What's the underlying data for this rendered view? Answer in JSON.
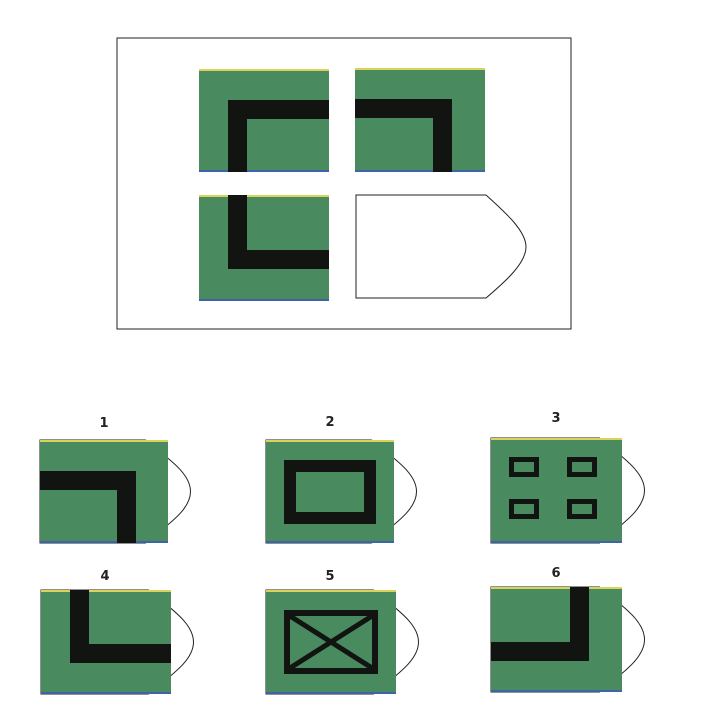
{
  "colors": {
    "tile": "#4a8a5f",
    "bar": "#111411",
    "frame": "#222222",
    "top_edge": "#d9d35a",
    "bottom_edge": "#3f63a8"
  },
  "puzzle": {
    "grid": [
      {
        "name": "matrix-cell-top-left",
        "figure": "corner-top-left"
      },
      {
        "name": "matrix-cell-top-right",
        "figure": "corner-top-right"
      },
      {
        "name": "matrix-cell-bottom-left",
        "figure": "corner-bottom-left"
      },
      {
        "name": "matrix-cell-missing",
        "figure": "blank"
      }
    ]
  },
  "options": [
    {
      "label": "1",
      "figure": "corner-top-right"
    },
    {
      "label": "2",
      "figure": "square-frame"
    },
    {
      "label": "3",
      "figure": "four-small-frames"
    },
    {
      "label": "4",
      "figure": "corner-bottom-left"
    },
    {
      "label": "5",
      "figure": "crossed-frame"
    },
    {
      "label": "6",
      "figure": "corner-bottom-right"
    }
  ]
}
